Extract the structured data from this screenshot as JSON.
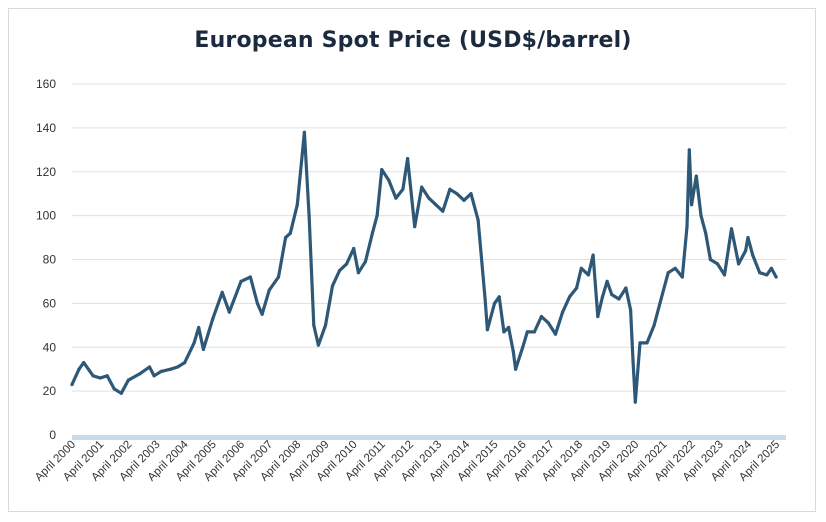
{
  "chart_data": {
    "type": "line",
    "title": "European Spot Price (USD$/barrel)",
    "xlabel": "",
    "ylabel": "",
    "ylim": [
      0,
      160
    ],
    "yticks": [
      0,
      20,
      40,
      60,
      80,
      100,
      120,
      140,
      160
    ],
    "grid": true,
    "legend": "none",
    "line_color": "#2e5877",
    "x_tick_labels": [
      "April 2000",
      "April 2001",
      "April 2002",
      "April 2003",
      "April 2004",
      "April 2005",
      "April 2006",
      "April 2007",
      "April 2008",
      "April 2009",
      "April 2010",
      "April 2011",
      "April 2012",
      "April 2013",
      "April 2014",
      "April 2015",
      "April 2016",
      "April 2017",
      "April 2018",
      "April 2019",
      "April 2020",
      "April 2021",
      "April 2022",
      "April 2023",
      "April 2024",
      "April 2025"
    ],
    "series": [
      {
        "x": [
          "2000-04",
          "2000-07",
          "2000-09",
          "2001-01",
          "2001-04",
          "2001-07",
          "2001-10",
          "2002-01",
          "2002-04",
          "2002-09",
          "2003-01",
          "2003-03",
          "2003-06",
          "2003-10",
          "2004-01",
          "2004-04",
          "2004-08",
          "2004-10",
          "2004-12",
          "2005-04",
          "2005-08",
          "2005-11",
          "2006-04",
          "2006-08",
          "2006-11",
          "2007-01",
          "2007-04",
          "2007-08",
          "2007-11",
          "2008-01",
          "2008-04",
          "2008-07",
          "2008-09",
          "2008-11",
          "2009-01",
          "2009-04",
          "2009-07",
          "2009-10",
          "2010-01",
          "2010-04",
          "2010-06",
          "2010-09",
          "2010-12",
          "2011-02",
          "2011-04",
          "2011-07",
          "2011-10",
          "2012-01",
          "2012-03",
          "2012-06",
          "2012-09",
          "2012-12",
          "2013-03",
          "2013-06",
          "2013-09",
          "2013-12",
          "2014-03",
          "2014-06",
          "2014-09",
          "2014-12",
          "2015-01",
          "2015-04",
          "2015-06",
          "2015-08",
          "2015-10",
          "2015-12",
          "2016-01",
          "2016-04",
          "2016-06",
          "2016-09",
          "2016-12",
          "2017-03",
          "2017-06",
          "2017-09",
          "2017-12",
          "2018-03",
          "2018-05",
          "2018-08",
          "2018-10",
          "2018-12",
          "2019-02",
          "2019-04",
          "2019-06",
          "2019-09",
          "2019-12",
          "2020-02",
          "2020-03",
          "2020-04",
          "2020-06",
          "2020-09",
          "2020-12",
          "2021-03",
          "2021-06",
          "2021-09",
          "2021-12",
          "2022-02",
          "2022-03",
          "2022-04",
          "2022-06",
          "2022-08",
          "2022-10",
          "2022-12",
          "2023-03",
          "2023-06",
          "2023-09",
          "2023-12",
          "2024-03",
          "2024-04",
          "2024-06",
          "2024-09",
          "2024-12",
          "2025-02",
          "2025-04"
        ],
        "values": [
          23,
          30,
          33,
          27,
          26,
          27,
          21,
          19,
          25,
          28,
          31,
          27,
          29,
          30,
          31,
          33,
          42,
          49,
          39,
          53,
          65,
          56,
          70,
          72,
          60,
          55,
          66,
          72,
          90,
          92,
          105,
          138,
          100,
          50,
          41,
          50,
          68,
          75,
          78,
          85,
          74,
          79,
          92,
          100,
          121,
          116,
          108,
          112,
          126,
          95,
          113,
          108,
          105,
          102,
          112,
          110,
          107,
          110,
          98,
          62,
          48,
          60,
          63,
          47,
          49,
          38,
          30,
          40,
          47,
          47,
          54,
          51,
          46,
          56,
          63,
          67,
          76,
          73,
          82,
          54,
          63,
          70,
          64,
          62,
          67,
          57,
          34,
          15,
          42,
          42,
          50,
          62,
          74,
          76,
          72,
          95,
          130,
          105,
          118,
          100,
          92,
          80,
          78,
          73,
          94,
          78,
          84,
          90,
          82,
          74,
          73,
          76,
          72
        ]
      }
    ]
  }
}
